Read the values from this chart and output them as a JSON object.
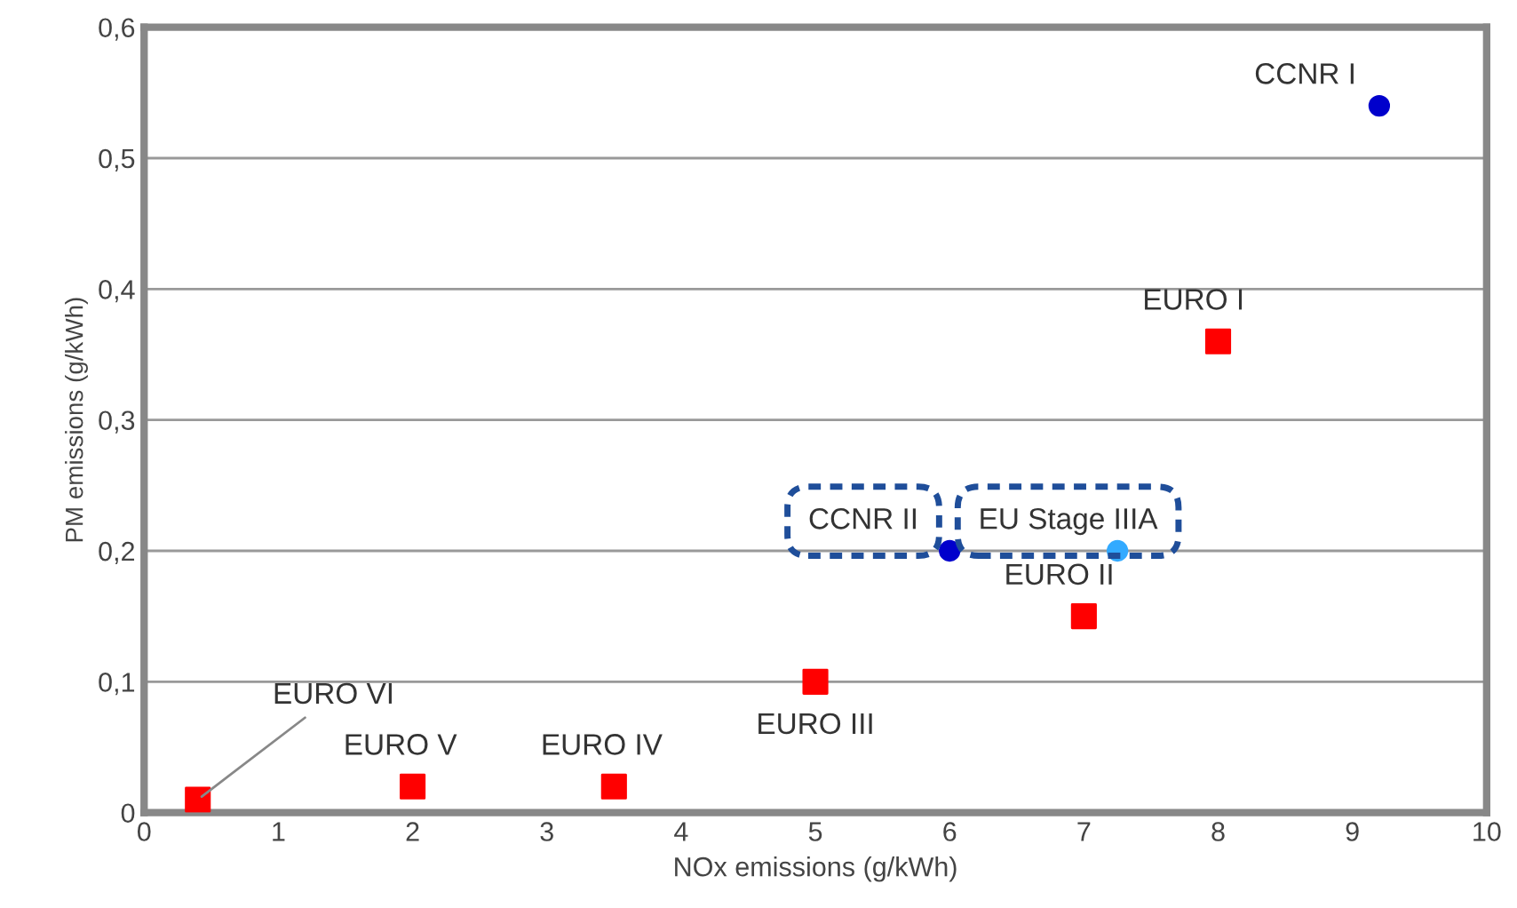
{
  "chart_data": {
    "type": "scatter",
    "xlabel": "NOx emissions (g/kWh)",
    "ylabel": "PM emissions (g/kWh)",
    "series": [
      {
        "color": "#ff0000",
        "marker": "square",
        "x": [
          0.4,
          2,
          3.5,
          5,
          7,
          8
        ],
        "values": [
          0.01,
          0.02,
          0.02,
          0.1,
          0.15,
          0.36
        ]
      },
      {
        "color": "#0000cc",
        "marker": "circle",
        "x": [
          9.2,
          6
        ],
        "values": [
          0.54,
          0.2
        ]
      },
      {
        "color": "#33aaff",
        "marker": "circle",
        "x": [
          7.25
        ],
        "values": [
          0.2
        ]
      }
    ],
    "annotations": [
      {
        "text": "EURO VI",
        "x": 0.4,
        "y": 0.01
      },
      {
        "text": "EURO V",
        "x": 2,
        "y": 0.02
      },
      {
        "text": "EURO IV",
        "x": 3.5,
        "y": 0.02
      },
      {
        "text": "EURO III",
        "x": 5,
        "y": 0.1
      },
      {
        "text": "EURO II",
        "x": 7,
        "y": 0.15
      },
      {
        "text": "EURO I",
        "x": 8,
        "y": 0.36
      },
      {
        "text": "CCNR I",
        "x": 9.2,
        "y": 0.54
      },
      {
        "text": "CCNR II",
        "x": 6,
        "y": 0.2
      },
      {
        "text": "EU Stage IIIA",
        "x": 7.25,
        "y": 0.2
      }
    ],
    "xlim": [
      0,
      10
    ],
    "xticks": [
      0,
      1,
      2,
      3,
      4,
      5,
      6,
      7,
      8,
      9,
      10
    ],
    "ylim": [
      0,
      0.6
    ],
    "yticks": [
      0,
      {
        "value": 0.1,
        "label": "0,1"
      },
      {
        "value": 0.2,
        "label": "0,2"
      },
      {
        "value": 0.3,
        "label": "0,3"
      },
      {
        "value": 0.4,
        "label": "0,4"
      },
      {
        "value": 0.5,
        "label": "0,5"
      },
      {
        "value": 0.6,
        "label": "0,6"
      }
    ],
    "grid": "y",
    "legend": false
  }
}
